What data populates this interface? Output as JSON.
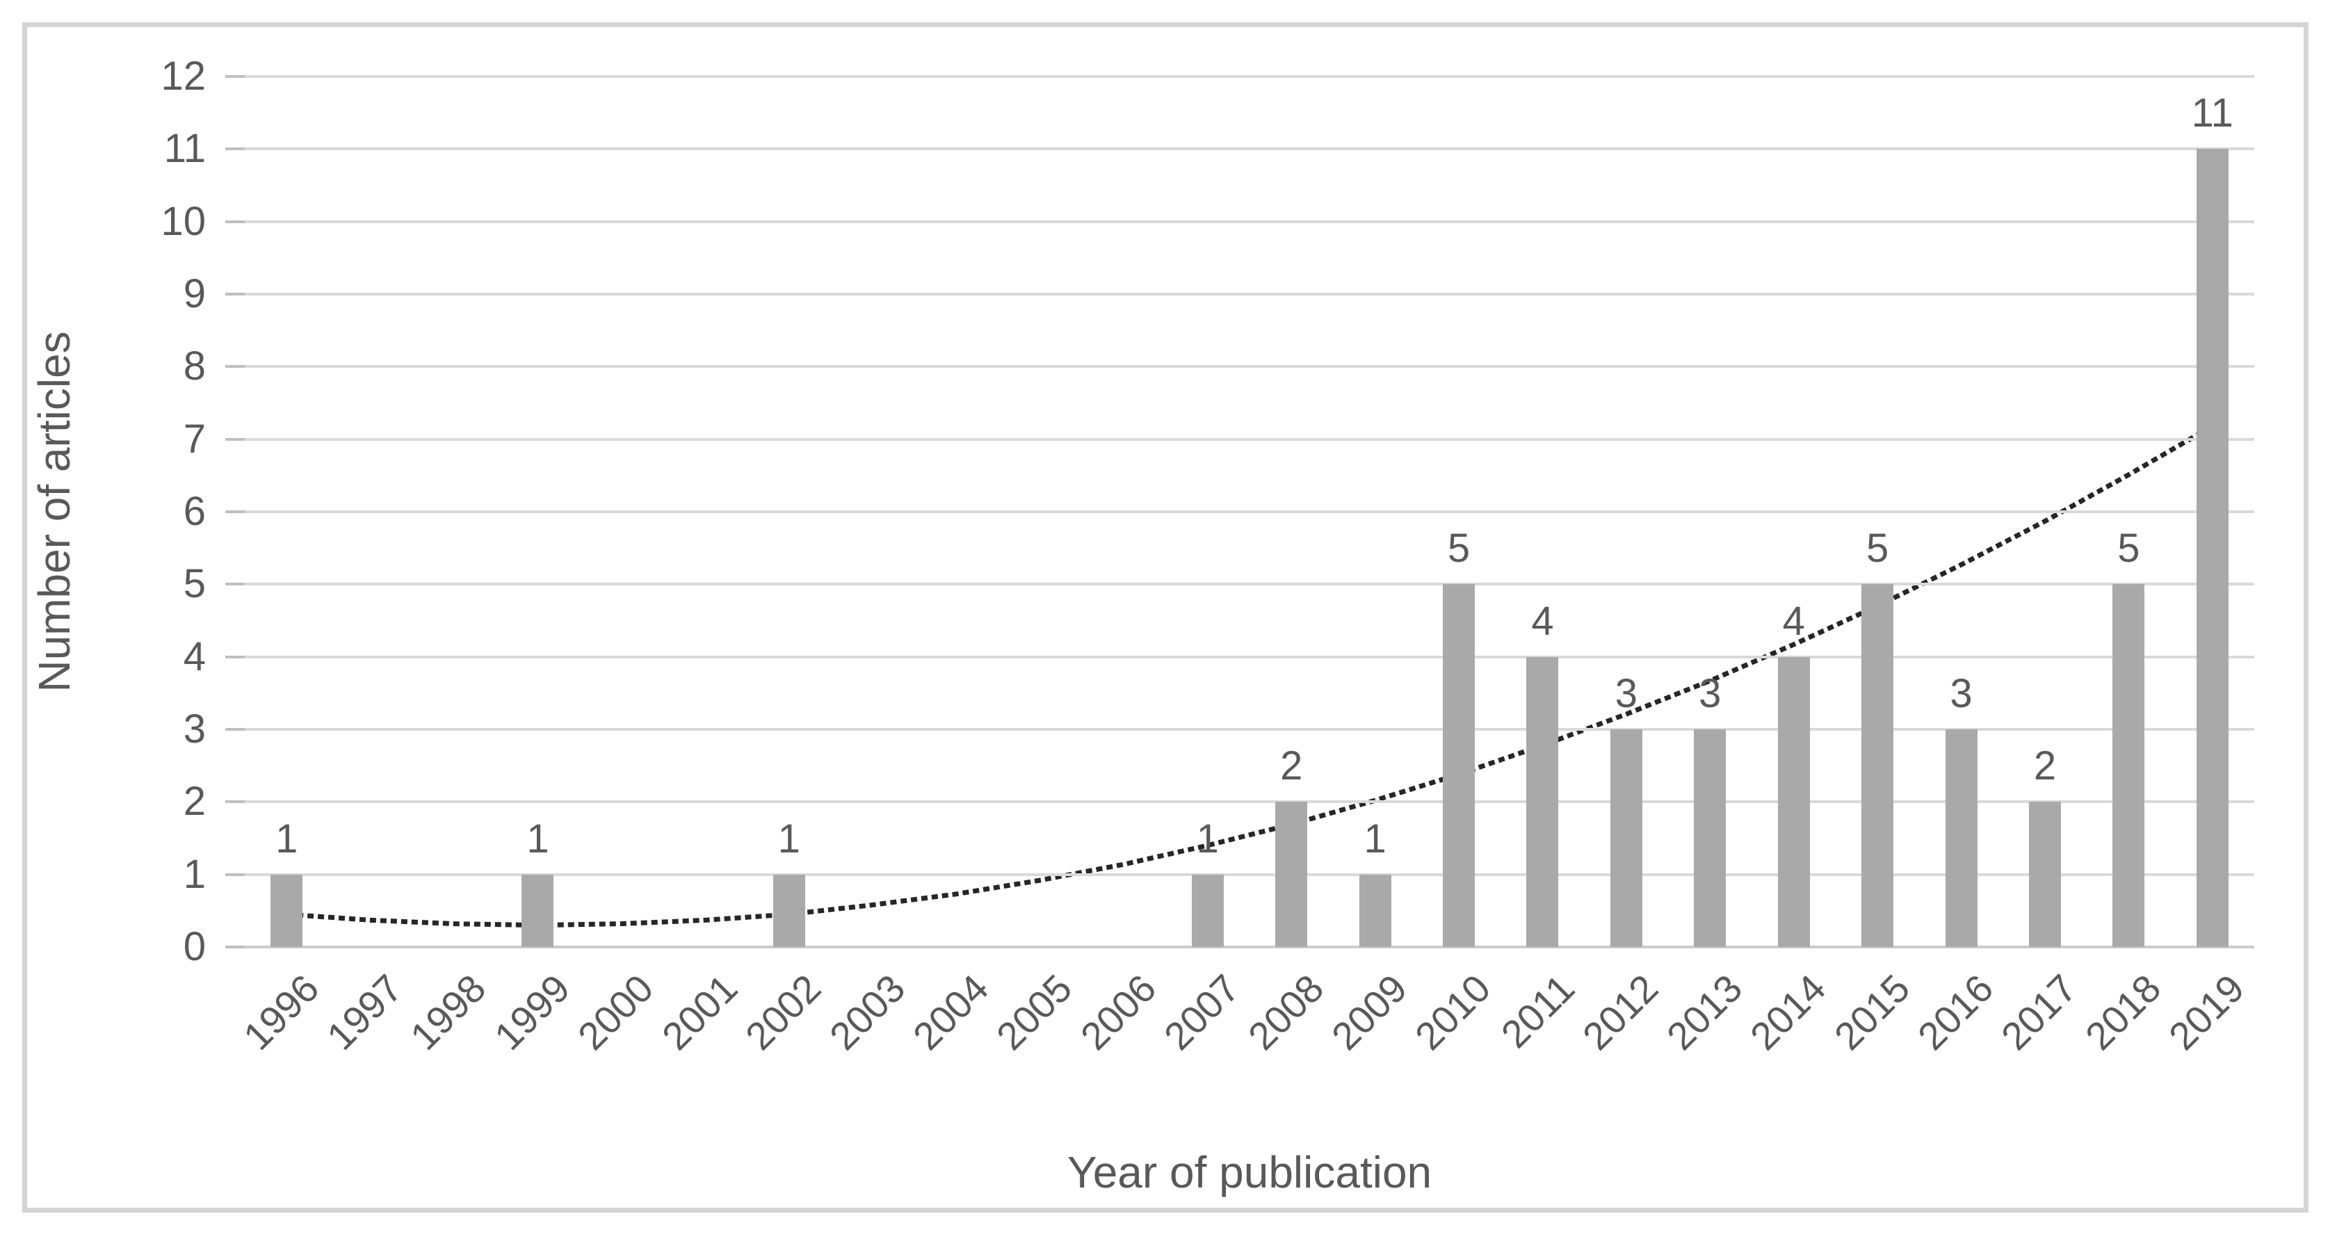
{
  "figure": {
    "background": "#ffffff",
    "border_color": "#d4d4d4"
  },
  "chart_data": {
    "type": "bar",
    "title": "",
    "xlabel": "Year of publication",
    "ylabel": "Number of articles",
    "categories": [
      "1996",
      "1997",
      "1998",
      "1999",
      "2000",
      "2001",
      "2002",
      "2003",
      "2004",
      "2005",
      "2006",
      "2007",
      "2008",
      "2009",
      "2010",
      "2011",
      "2012",
      "2013",
      "2014",
      "2015",
      "2016",
      "2017",
      "2018",
      "2019"
    ],
    "values": [
      1,
      0,
      0,
      1,
      0,
      0,
      1,
      0,
      0,
      0,
      0,
      1,
      2,
      1,
      5,
      4,
      3,
      3,
      4,
      5,
      3,
      2,
      5,
      11
    ],
    "ylim": [
      0,
      12
    ],
    "ytick_labels": [
      "0",
      "1",
      "2",
      "3",
      "4",
      "5",
      "6",
      "7",
      "8",
      "9",
      "10",
      "11",
      "12"
    ],
    "grid": "horizontal",
    "legend": "none",
    "bar_color": "#a9a9a9",
    "gridline_color": "#d9d9d9",
    "axis_tick_color": "#bfbfbf",
    "text_color": "#595959",
    "trendline": {
      "style": "dotted",
      "color": "#262626",
      "values": [
        0.45,
        0.37,
        0.32,
        0.3,
        0.32,
        0.37,
        0.45,
        0.58,
        0.73,
        0.92,
        1.14,
        1.4,
        1.69,
        2.02,
        2.38,
        2.78,
        3.21,
        3.67,
        4.17,
        4.7,
        5.27,
        5.87,
        6.51,
        7.18
      ]
    }
  }
}
